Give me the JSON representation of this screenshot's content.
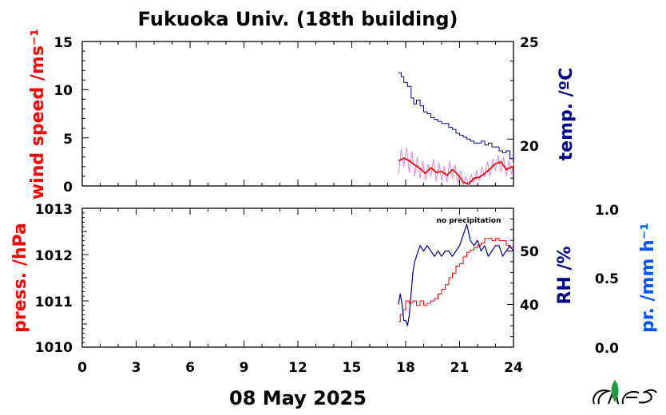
{
  "chart_data": [
    {
      "type": "line",
      "title": "Fukuoka Univ. (18th building)",
      "xlabel": "08 May 2025",
      "x_ticks": [
        "0",
        "3",
        "6",
        "9",
        "12",
        "15",
        "18",
        "21",
        "24"
      ],
      "xlim": [
        0,
        24
      ],
      "ylabel_left": "wind speed /ms⁻¹",
      "ylim_left": [
        0,
        15
      ],
      "y_ticks_left": [
        "0",
        "5",
        "10",
        "15"
      ],
      "ylabel_right": "temp. /ºC",
      "ylim_right": [
        17.6,
        25
      ],
      "y_ticks_right": [
        "20",
        "25"
      ],
      "series": [
        {
          "axis": "right",
          "color": "#00008b",
          "x": [
            17.6,
            17.75,
            17.9,
            18.1,
            18.3,
            18.45,
            18.6,
            18.8,
            19.0,
            19.2,
            19.4,
            19.6,
            19.8,
            20.0,
            20.2,
            20.4,
            20.6,
            20.8,
            21.0,
            21.2,
            21.4,
            21.6,
            21.8,
            22.0,
            22.2,
            22.4,
            22.6,
            22.8,
            23.0,
            23.2,
            23.4,
            23.6,
            23.8,
            24.0
          ],
          "values": [
            23.4,
            23.2,
            22.9,
            22.7,
            22.1,
            21.8,
            22.0,
            21.7,
            21.4,
            21.3,
            21.1,
            21.0,
            20.9,
            20.8,
            20.8,
            20.6,
            20.5,
            20.3,
            20.2,
            20.1,
            20.0,
            19.9,
            19.8,
            19.8,
            19.9,
            19.7,
            19.8,
            19.6,
            19.6,
            19.4,
            19.3,
            19.4,
            19.0,
            19.2
          ]
        },
        {
          "axis": "left",
          "color": "#ff0000",
          "x": [
            17.6,
            17.9,
            18.2,
            18.5,
            18.8,
            19.1,
            19.4,
            19.7,
            20.0,
            20.3,
            20.6,
            20.9,
            21.2,
            21.5,
            21.8,
            22.1,
            22.4,
            22.7,
            23.0,
            23.3,
            23.6,
            23.9,
            24.0
          ],
          "values": [
            2.6,
            2.9,
            2.6,
            2.2,
            1.8,
            1.3,
            1.9,
            1.4,
            1.5,
            1.1,
            1.7,
            1.2,
            0.4,
            0.2,
            0.8,
            0.9,
            1.3,
            1.8,
            2.3,
            2.5,
            1.7,
            2.0,
            1.8
          ]
        },
        {
          "axis": "left",
          "color": "#dd88dd",
          "x": [
            17.6,
            17.75,
            17.9,
            18.05,
            18.2,
            18.35,
            18.5,
            18.65,
            18.8,
            18.95,
            19.1,
            19.25,
            19.4,
            19.55,
            19.7,
            19.85,
            20.0,
            20.15,
            20.3,
            20.45,
            20.6,
            20.75,
            20.9,
            21.05,
            21.2,
            21.35,
            21.5,
            21.65,
            21.8,
            21.95,
            22.1,
            22.25,
            22.4,
            22.55,
            22.7,
            22.85,
            23.0,
            23.15,
            23.3,
            23.45,
            23.6,
            23.75,
            23.9,
            24.0
          ],
          "values": [
            1.2,
            3.8,
            2.0,
            4.0,
            1.4,
            3.6,
            1.0,
            3.0,
            0.8,
            2.6,
            0.6,
            2.2,
            1.0,
            2.8,
            0.5,
            2.4,
            0.6,
            2.0,
            0.4,
            2.6,
            0.8,
            2.2,
            0.3,
            1.6,
            0.1,
            1.0,
            0.0,
            1.2,
            0.3,
            1.6,
            0.5,
            2.0,
            0.9,
            2.5,
            1.0,
            2.8,
            1.6,
            3.2,
            1.5,
            3.0,
            1.0,
            2.6,
            1.2,
            2.4
          ]
        }
      ]
    },
    {
      "type": "line",
      "xlabel": "08 May 2025",
      "x_ticks": [
        "0",
        "3",
        "6",
        "9",
        "12",
        "15",
        "18",
        "21",
        "24"
      ],
      "xlim": [
        0,
        24
      ],
      "ylabel_left": "press. /hPa",
      "ylim_left": [
        1010,
        1013
      ],
      "y_ticks_left": [
        "1010",
        "1011",
        "1012",
        "1013"
      ],
      "ylabel_right": "RH /%",
      "ylim_right": [
        32,
        58
      ],
      "y_ticks_right": [
        "40",
        "50"
      ],
      "ylabel_far_right": "pr. /mm h⁻¹",
      "ylim_far_right": [
        0,
        1
      ],
      "y_ticks_far_right": [
        "0.0",
        "0.5",
        "1.0"
      ],
      "annotation": "no precipitation",
      "series": [
        {
          "axis": "left",
          "color": "#ff0000",
          "x": [
            17.6,
            17.7,
            17.85,
            18.0,
            18.2,
            18.4,
            18.6,
            18.8,
            19.0,
            19.2,
            19.4,
            19.6,
            19.8,
            20.0,
            20.2,
            20.4,
            20.6,
            20.8,
            21.0,
            21.2,
            21.4,
            21.6,
            21.8,
            22.0,
            22.2,
            22.4,
            22.6,
            22.8,
            23.0,
            23.2,
            23.4,
            23.6,
            23.8,
            24.0
          ],
          "values": [
            1010.55,
            1010.7,
            1010.8,
            1011.0,
            1010.95,
            1011.0,
            1010.9,
            1011.0,
            1010.9,
            1010.95,
            1011.0,
            1011.05,
            1011.15,
            1011.25,
            1011.35,
            1011.5,
            1011.6,
            1011.75,
            1011.8,
            1011.95,
            1012.05,
            1012.1,
            1012.15,
            1012.2,
            1012.25,
            1012.35,
            1012.35,
            1012.3,
            1012.35,
            1012.3,
            1012.3,
            1012.2,
            1012.15,
            1012.1
          ]
        },
        {
          "axis": "right",
          "color": "#00008b",
          "x": [
            17.6,
            17.7,
            17.8,
            17.9,
            18.0,
            18.1,
            18.2,
            18.3,
            18.4,
            18.5,
            18.6,
            18.8,
            19.0,
            19.2,
            19.4,
            19.6,
            19.8,
            20.0,
            20.2,
            20.4,
            20.6,
            20.8,
            21.0,
            21.2,
            21.4,
            21.6,
            21.8,
            22.0,
            22.2,
            22.4,
            22.6,
            22.8,
            23.0,
            23.2,
            23.4,
            23.6,
            23.8,
            24.0
          ],
          "values": [
            40,
            42,
            40,
            37,
            37,
            36,
            38,
            42,
            46,
            48,
            49,
            51,
            50,
            51,
            50,
            49,
            50,
            49,
            50,
            50,
            49,
            50,
            51,
            53,
            55,
            52,
            51,
            52,
            50,
            51,
            49,
            50,
            51,
            51,
            49,
            50,
            51,
            50
          ]
        }
      ]
    }
  ]
}
